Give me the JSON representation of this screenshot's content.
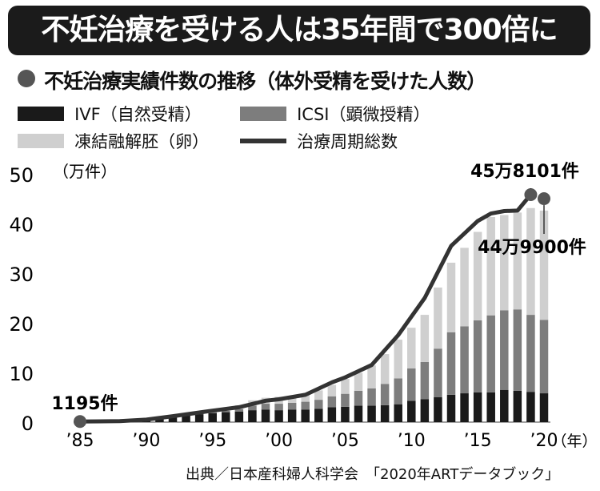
{
  "header": {
    "title": "不妊治療を受ける人は35年間で300倍に"
  },
  "subtitle": "不妊治療実績件数の推移（体外受精を受けた人数）",
  "legend": [
    {
      "label": "IVF（自然受精）",
      "kind": "bar",
      "color": "#1a1a1a"
    },
    {
      "label": "ICSI（顕微授精）",
      "kind": "bar",
      "color": "#7d7d7d"
    },
    {
      "label": "凍結融解胚（卵）",
      "kind": "bar",
      "color": "#cfcfcf"
    },
    {
      "label": "治療周期総数",
      "kind": "line",
      "color": "#333333"
    }
  ],
  "source": "出典／日本産科婦人科学会　「2020年ARTデータブック」",
  "chart_data": {
    "type": "bar",
    "stacked": true,
    "unit_label": "（万件）",
    "year_suffix": "（年）",
    "ylim": [
      0,
      50
    ],
    "yticks": [
      0,
      10,
      20,
      30,
      40,
      50
    ],
    "xtick_labels": [
      {
        "year": 1985,
        "label": "’85"
      },
      {
        "year": 1990,
        "label": "’90"
      },
      {
        "year": 1995,
        "label": "’95"
      },
      {
        "year": 2000,
        "label": "’00"
      },
      {
        "year": 2005,
        "label": "’05"
      },
      {
        "year": 2010,
        "label": "’10"
      },
      {
        "year": 2015,
        "label": "’15"
      },
      {
        "year": 2020,
        "label": "’20"
      }
    ],
    "x": [
      1985,
      1986,
      1987,
      1988,
      1989,
      1990,
      1991,
      1992,
      1993,
      1994,
      1995,
      1996,
      1997,
      1998,
      1999,
      2000,
      2001,
      2002,
      2003,
      2004,
      2005,
      2006,
      2007,
      2008,
      2009,
      2010,
      2011,
      2012,
      2013,
      2014,
      2015,
      2016,
      2017,
      2018,
      2019,
      2020
    ],
    "series": [
      {
        "name": "IVF（自然受精）",
        "color": "#1a1a1a",
        "values": [
          0.1,
          0.1,
          0.1,
          0.2,
          0.3,
          0.5,
          0.8,
          1.1,
          1.4,
          1.6,
          1.8,
          2.0,
          2.1,
          2.4,
          2.5,
          2.4,
          2.5,
          2.5,
          2.7,
          3.0,
          3.1,
          3.3,
          3.3,
          3.4,
          3.6,
          4.3,
          4.6,
          5.0,
          5.5,
          5.8,
          6.0,
          6.0,
          6.5,
          6.3,
          6.1,
          5.8
        ]
      },
      {
        "name": "ICSI（顕微授精）",
        "color": "#7d7d7d",
        "values": [
          0,
          0,
          0,
          0,
          0,
          0,
          0,
          0,
          0.1,
          0.1,
          0.2,
          0.3,
          0.5,
          0.9,
          1.2,
          1.3,
          1.4,
          1.6,
          1.8,
          2.2,
          2.6,
          3.0,
          3.5,
          4.3,
          5.2,
          6.5,
          7.5,
          9.8,
          12.6,
          13.5,
          14.5,
          15.5,
          16.0,
          16.4,
          15.5,
          14.8
        ]
      },
      {
        "name": "凍結融解胚（卵）",
        "color": "#cfcfcf",
        "values": [
          0,
          0,
          0,
          0,
          0,
          0,
          0,
          0,
          0.1,
          0.1,
          0.3,
          0.5,
          0.8,
          1.1,
          1.2,
          1.4,
          1.4,
          1.5,
          1.9,
          2.3,
          3.0,
          3.6,
          4.6,
          6.0,
          7.8,
          8.2,
          9.5,
          12.3,
          14.0,
          15.8,
          17.8,
          19.8,
          19.2,
          19.5,
          21.5,
          22.0
        ]
      }
    ],
    "line": {
      "name": "治療周期総数",
      "color": "#333333",
      "x": [
        1985,
        1988,
        1990,
        1992,
        1995,
        1997,
        1999,
        2000,
        2002,
        2004,
        2005,
        2007,
        2009,
        2011,
        2013,
        2015,
        2016,
        2017,
        2018,
        2019
      ],
      "values": [
        0.12,
        0.2,
        0.5,
        1.2,
        2.3,
        3.0,
        4.3,
        4.6,
        5.5,
        8.0,
        9.0,
        11.5,
        17.5,
        25.0,
        35.5,
        40.5,
        42.0,
        42.5,
        42.6,
        45.8101
      ]
    },
    "annotations": [
      {
        "year": 1985,
        "value": 0.1195,
        "label": "1195件",
        "position": "above"
      },
      {
        "year": 2019,
        "value": 45.8101,
        "label": "45万8101件",
        "position": "above"
      },
      {
        "year": 2020,
        "value": 44.99,
        "label": "44万9900件",
        "position": "below"
      }
    ]
  }
}
